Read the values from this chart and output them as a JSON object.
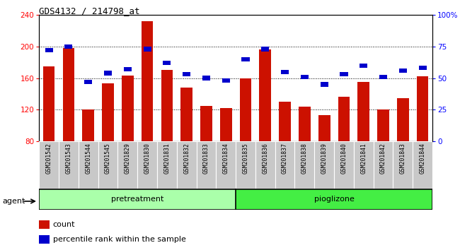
{
  "title": "GDS4132 / 214798_at",
  "samples": [
    "GSM201542",
    "GSM201543",
    "GSM201544",
    "GSM201545",
    "GSM201829",
    "GSM201830",
    "GSM201831",
    "GSM201832",
    "GSM201833",
    "GSM201834",
    "GSM201835",
    "GSM201836",
    "GSM201837",
    "GSM201838",
    "GSM201839",
    "GSM201840",
    "GSM201841",
    "GSM201842",
    "GSM201843",
    "GSM201844"
  ],
  "counts": [
    175,
    198,
    120,
    153,
    163,
    232,
    170,
    148,
    125,
    122,
    160,
    196,
    130,
    124,
    113,
    136,
    155,
    120,
    135,
    162
  ],
  "percentiles": [
    72,
    75,
    47,
    54,
    57,
    73,
    62,
    53,
    50,
    48,
    65,
    73,
    55,
    51,
    45,
    53,
    60,
    51,
    56,
    58
  ],
  "group1_label": "pretreatment",
  "group2_label": "pioglizone",
  "group1_count": 10,
  "group2_count": 10,
  "ylim_left": [
    80,
    240
  ],
  "ylim_right": [
    0,
    100
  ],
  "yticks_left": [
    80,
    120,
    160,
    200,
    240
  ],
  "yticks_right": [
    0,
    25,
    50,
    75,
    100
  ],
  "ytick_right_labels": [
    "0",
    "25",
    "50",
    "75",
    "100%"
  ],
  "bar_color": "#cc1100",
  "percentile_color": "#0000cc",
  "agent_label": "agent",
  "legend_count_label": "count",
  "legend_pct_label": "percentile rank within the sample",
  "group1_bg": "#aaffaa",
  "group2_bg": "#44ee44",
  "xticklabel_bg": "#c8c8c8"
}
